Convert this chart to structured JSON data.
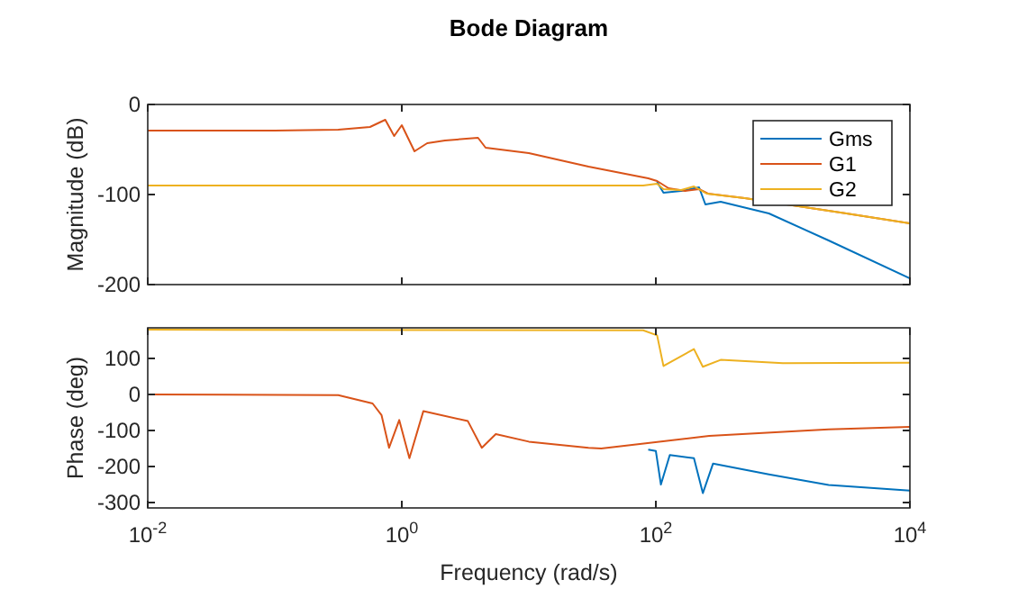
{
  "chart_data": [
    {
      "type": "line",
      "title": "Bode Diagram",
      "ylabel": "Magnitude (dB)",
      "log": "x",
      "grid": false,
      "legend": "top right",
      "tick_labels": "y",
      "line_style": "solid",
      "marker": "none",
      "xlim": [
        0.01,
        10000
      ],
      "xticks": [
        {
          "value": 0.01,
          "label": null
        },
        {
          "value": 1,
          "label": null
        },
        {
          "value": 100,
          "label": null
        },
        {
          "value": 10000,
          "label": null
        }
      ],
      "ylim": [
        -200,
        0
      ],
      "yticks": [
        0,
        -100,
        -200
      ],
      "series": [
        {
          "name": "Gms",
          "color": "#0072bd",
          "x": [
            102.3,
            114.8,
            158.5,
            218.8,
            245.5,
            323.6,
            776.2,
            2291,
            10000
          ],
          "values": [
            -86,
            -98,
            -96,
            -92,
            -111,
            -108,
            -121,
            -151,
            -193
          ]
        },
        {
          "name": "G1",
          "color": "#d95319",
          "x": [
            0.01,
            0.1,
            0.316,
            0.562,
            0.741,
            0.871,
            1,
            1.259,
            1.585,
            2.188,
            3.981,
            4.571,
            10,
            29.51,
            87.1,
            102.3,
            125.9,
            169.8,
            218.8,
            257,
            501,
            3162,
            10000
          ],
          "values": [
            -29,
            -29,
            -28,
            -25,
            -17,
            -35,
            -23,
            -52,
            -43,
            -40,
            -37,
            -48,
            -54,
            -69,
            -82,
            -85,
            -93,
            -96,
            -94,
            -99,
            -104,
            -121,
            -132
          ]
        },
        {
          "name": "G2",
          "color": "#edb120",
          "x": [
            0.01,
            79.43,
            102.3,
            114.8,
            158.5,
            199.5,
            251.2,
            501,
            3162,
            10000
          ],
          "values": [
            -90,
            -90,
            -88,
            -94,
            -95,
            -91,
            -99,
            -104,
            -121,
            -132
          ]
        }
      ]
    },
    {
      "type": "line",
      "xlabel": "Frequency (rad/s)",
      "ylabel": "Phase (deg)",
      "log": "x",
      "grid": false,
      "line_style": "solid",
      "marker": "none",
      "xlim": [
        0.01,
        10000
      ],
      "xticks": [
        {
          "value": 0.01,
          "label": "10$^{-2}$"
        },
        {
          "value": 1,
          "label": "10$^{0}$"
        },
        {
          "value": 100,
          "label": "10$^{2}$"
        },
        {
          "value": 10000,
          "label": "10$^{4}$"
        }
      ],
      "ylim": [
        -315,
        185
      ],
      "yticks": [
        100,
        0,
        -100,
        -200,
        -300
      ],
      "series": [
        {
          "color": "#0072bd",
          "x": [
            87.1,
            100,
            109.6,
            128.8,
            199.5,
            234.4,
            281.8,
            776.2,
            2291,
            10000
          ],
          "values": [
            -153,
            -157,
            -250,
            -168,
            -177,
            -274,
            -192,
            -222,
            -251,
            -267
          ]
        },
        {
          "color": "#d95319",
          "x": [
            0.01,
            0.316,
            0.589,
            0.692,
            0.794,
            0.955,
            1.148,
            1.479,
            3.311,
            4.266,
            5.495,
            10,
            29.51,
            37.15,
            263,
            2291,
            10000
          ],
          "values": [
            0,
            -2,
            -25,
            -57,
            -148,
            -71,
            -177,
            -46,
            -74,
            -148,
            -110,
            -131,
            -148,
            -150,
            -115,
            -97,
            -90
          ]
        },
        {
          "color": "#edb120",
          "x": [
            0.01,
            79.43,
            102.3,
            114.8,
            199.5,
            234.4,
            323.6,
            1000,
            10000
          ],
          "values": [
            180,
            178,
            164,
            79,
            126,
            77,
            96,
            87,
            88
          ]
        }
      ]
    }
  ]
}
